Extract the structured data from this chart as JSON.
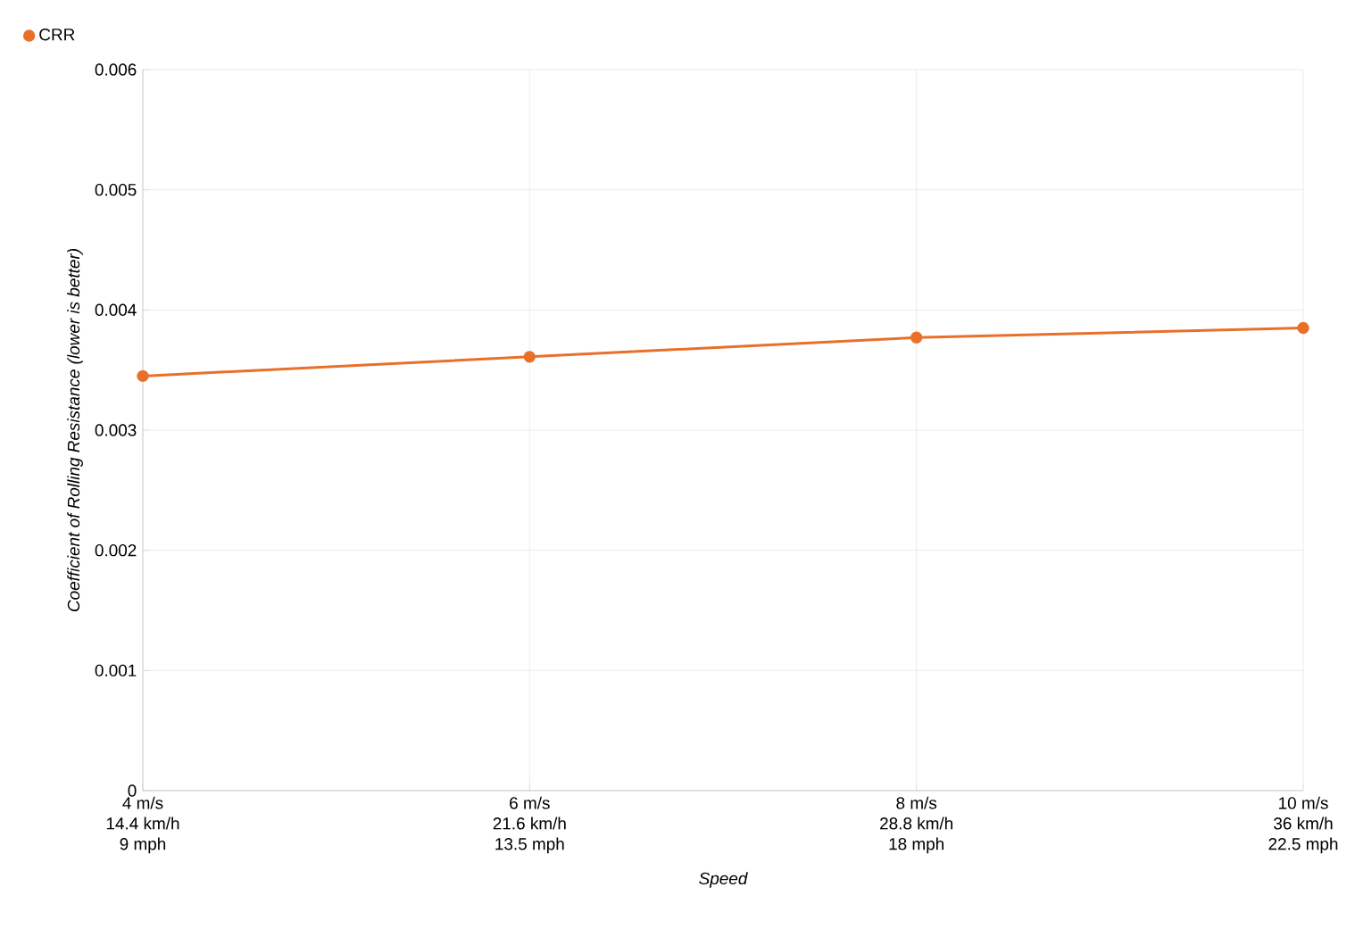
{
  "chart_data": {
    "type": "line",
    "xlabel": "Speed",
    "ylabel": "Coefficient of Rolling Resistance (lower is better)",
    "categories": [
      "4 m/s\n14.4 km/h\n9 mph",
      "6 m/s\n21.6 km/h\n13.5 mph",
      "8 m/s\n28.8 km/h\n18 mph",
      "10 m/s\n36 km/h\n22.5 mph"
    ],
    "series": [
      {
        "name": "CRR",
        "color": "#e8702a",
        "values": [
          0.00345,
          0.00361,
          0.00377,
          0.00385
        ]
      }
    ],
    "ylim": [
      0,
      0.006
    ],
    "yticks": [
      0,
      0.001,
      0.002,
      0.003,
      0.004,
      0.005,
      0.006
    ],
    "grid": true,
    "legend": "top left",
    "marker": "circle",
    "line_style": "solid"
  }
}
